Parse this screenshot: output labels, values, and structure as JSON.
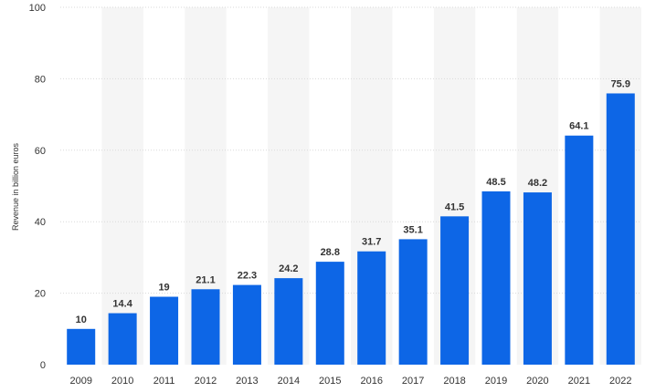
{
  "chart_data": {
    "type": "bar",
    "categories": [
      "2009",
      "2010",
      "2011",
      "2012",
      "2013",
      "2014",
      "2015",
      "2016",
      "2017",
      "2018",
      "2019",
      "2020",
      "2021",
      "2022"
    ],
    "values": [
      10,
      14.4,
      19,
      21.1,
      22.3,
      24.2,
      28.8,
      31.7,
      35.1,
      41.5,
      48.5,
      48.2,
      64.1,
      75.9
    ],
    "value_labels": [
      "10",
      "14.4",
      "19",
      "21.1",
      "22.3",
      "24.2",
      "28.8",
      "31.7",
      "35.1",
      "41.5",
      "48.5",
      "48.2",
      "64.1",
      "75.9"
    ],
    "ylabel": "Revenue in billion euros",
    "xlabel": "",
    "ylim": [
      0,
      100
    ],
    "yticks": [
      0,
      20,
      40,
      60,
      80,
      100
    ],
    "grid": true,
    "bar_color": "#0d66e6",
    "alt_band_color": "#f5f5f5",
    "grid_color": "#d9d9d9"
  }
}
